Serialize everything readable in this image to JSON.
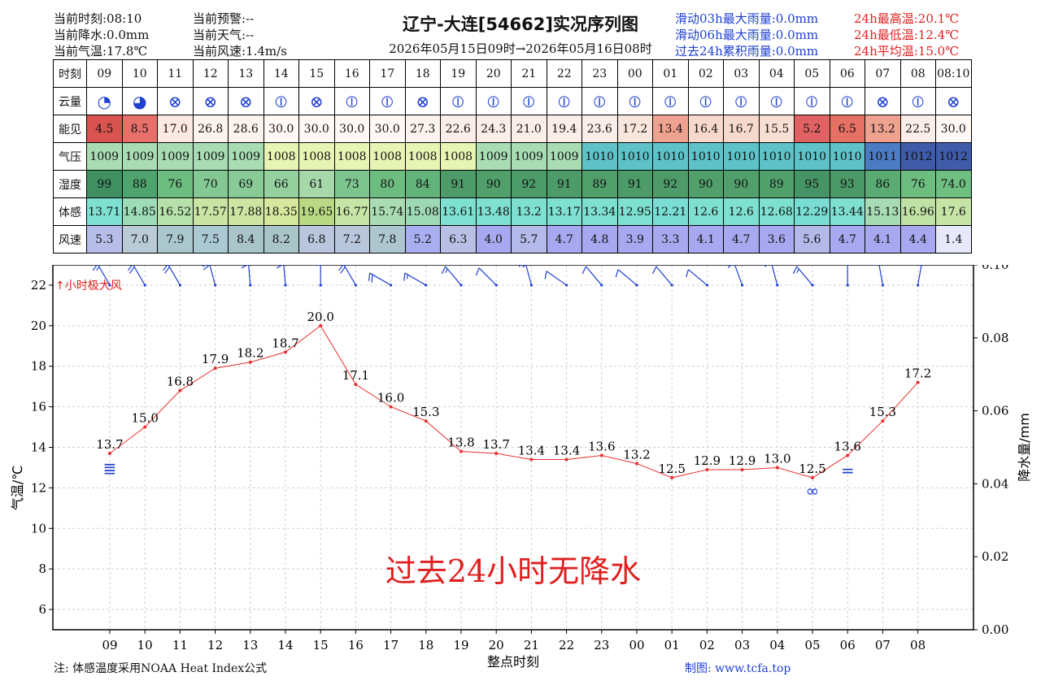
{
  "header": {
    "current_time": "当前时刻:08:10",
    "current_precip": "当前降水:0.0mm",
    "current_temp": "当前气温:17.8℃",
    "current_warning": "当前预警:--",
    "current_weather": "当前天气:--",
    "current_wind": "当前风速:1.4m/s",
    "title": "辽宁-大连[54662]实况序列图",
    "range": "2026年05月15日09时→2026年05月16日08时",
    "rain3h": "滑动03h最大雨量:0.0mm",
    "rain6h": "滑动06h最大雨量:0.0mm",
    "rain24h": "过去24h累积雨量:0.0mm",
    "tmax": "24h最高温:20.1℃",
    "tmin": "24h最低温:12.4℃",
    "tavg": "24h平均温:15.0℃"
  },
  "table": {
    "row_labels": [
      "时刻",
      "云量",
      "能见",
      "气压",
      "湿度",
      "体感",
      "风速"
    ],
    "hours": [
      "09",
      "10",
      "11",
      "12",
      "13",
      "14",
      "15",
      "16",
      "17",
      "18",
      "19",
      "20",
      "21",
      "22",
      "23",
      "00",
      "01",
      "02",
      "03",
      "04",
      "05",
      "06",
      "07",
      "08",
      "08:10"
    ],
    "cloud": [
      "◔",
      "◕",
      "⊗",
      "⊗",
      "⊗",
      "⦶",
      "⊗",
      "⦶",
      "⦶",
      "⊗",
      "⦶",
      "⦶",
      "⦶",
      "⦶",
      "⦶",
      "⦶",
      "⦶",
      "⦶",
      "⦶",
      "⦶",
      "⦶",
      "⦶",
      "⊗",
      "⦶",
      "⊗"
    ],
    "visibility": [
      "4.5",
      "8.5",
      "17.0",
      "26.8",
      "28.6",
      "30.0",
      "30.0",
      "30.0",
      "30.0",
      "27.3",
      "22.6",
      "24.3",
      "21.0",
      "19.4",
      "23.6",
      "17.2",
      "13.4",
      "16.4",
      "16.7",
      "15.5",
      "5.2",
      "6.5",
      "13.2",
      "22.5",
      "30.0"
    ],
    "pressure": [
      "1009",
      "1009",
      "1009",
      "1009",
      "1009",
      "1008",
      "1008",
      "1008",
      "1008",
      "1008",
      "1008",
      "1009",
      "1009",
      "1009",
      "1010",
      "1010",
      "1010",
      "1010",
      "1010",
      "1010",
      "1010",
      "1010",
      "1011",
      "1012",
      "1012"
    ],
    "humidity": [
      "99",
      "88",
      "76",
      "70",
      "69",
      "66",
      "61",
      "73",
      "80",
      "84",
      "91",
      "90",
      "92",
      "91",
      "89",
      "91",
      "92",
      "90",
      "90",
      "89",
      "95",
      "93",
      "86",
      "76",
      "74.0"
    ],
    "feels_like": [
      "13.71",
      "14.85",
      "16.52",
      "17.57",
      "17.88",
      "18.35",
      "19.65",
      "16.77",
      "15.74",
      "15.08",
      "13.61",
      "13.48",
      "13.2",
      "13.17",
      "13.34",
      "12.95",
      "12.21",
      "12.6",
      "12.6",
      "12.68",
      "12.29",
      "13.44",
      "15.13",
      "16.96",
      "17.6"
    ],
    "wind_speed": [
      "5.3",
      "7.0",
      "7.9",
      "7.5",
      "8.4",
      "8.2",
      "6.8",
      "7.2",
      "7.8",
      "5.2",
      "6.3",
      "4.0",
      "5.7",
      "4.7",
      "4.8",
      "3.9",
      "3.3",
      "4.1",
      "4.7",
      "3.6",
      "5.6",
      "4.7",
      "4.1",
      "4.4",
      "1.4"
    ],
    "colors": {
      "visibility": [
        "#d9534f",
        "#e8706a",
        "#fde9e2",
        "#fdf3ee",
        "#fdf3ee",
        "#fff8f5",
        "#fff8f5",
        "#fff8f5",
        "#fff8f5",
        "#fdf3ee",
        "#fbeee8",
        "#fbeee8",
        "#fbeee8",
        "#fbeee8",
        "#fbeee8",
        "#f9e6dd",
        "#f0a290",
        "#f7d8cc",
        "#f7d8cc",
        "#f8dfd4",
        "#e06262",
        "#e57063",
        "#f0a290",
        "#fbeee8",
        "#fff8f5"
      ],
      "pressure": [
        "#a8dcb3",
        "#a8dcb3",
        "#a8dcb3",
        "#a8dcb3",
        "#a8dcb3",
        "#e7f4b4",
        "#e7f4b4",
        "#e7f4b4",
        "#e7f4b4",
        "#e7f4b4",
        "#e7f4b4",
        "#a8dcb3",
        "#a8dcb3",
        "#a8dcb3",
        "#5dc3c9",
        "#5dc3c9",
        "#5dc3c9",
        "#5dc3c9",
        "#5dc3c9",
        "#5dc3c9",
        "#5dc3c9",
        "#5dc3c9",
        "#4a7bc3",
        "#3f5ba9",
        "#3f5ba9"
      ],
      "humidity": [
        "#3f8f61",
        "#4fa36e",
        "#6cbd7f",
        "#84c994",
        "#88cb97",
        "#94d19f",
        "#a6d8aa",
        "#7ec48f",
        "#6cbd7f",
        "#62b379",
        "#4d9b69",
        "#51a06c",
        "#4d9b69",
        "#4d9b69",
        "#51a06c",
        "#4d9b69",
        "#4d9b69",
        "#51a06c",
        "#51a06c",
        "#51a06c",
        "#469465",
        "#4b9868",
        "#5aab74",
        "#6cbd7f",
        "#6ebf81"
      ],
      "feels_like": [
        "#7ee0d1",
        "#9edcb8",
        "#b7e1ab",
        "#c9e4a3",
        "#cde5a1",
        "#d6e79e",
        "#b9d985",
        "#c6e4a6",
        "#a9dcb3",
        "#9ed9b6",
        "#7ee0d1",
        "#7ee0d1",
        "#7ee0d1",
        "#7ee0d1",
        "#7ee0d1",
        "#7ee0d1",
        "#79ddd4",
        "#7ee0d1",
        "#7ee0d1",
        "#7ee0d1",
        "#79ddd4",
        "#7ee0d1",
        "#a6dbb4",
        "#c1e2a5",
        "#c6e4a6"
      ],
      "wind_speed": [
        "#b6bde8",
        "#b9cbd6",
        "#a9c7cd",
        "#aac9d3",
        "#a9c5c9",
        "#a9c5c9",
        "#b9c6dd",
        "#b8c6db",
        "#adc6cf",
        "#a9aef0",
        "#b9c0e6",
        "#a8a8f0",
        "#b3b9e8",
        "#a8a8f0",
        "#a8a8f0",
        "#a8a8f0",
        "#a8a8f0",
        "#a8a8f0",
        "#a8a8f0",
        "#a8a8f0",
        "#b3b9e8",
        "#a8a8f0",
        "#a8a8f0",
        "#a8a8f0",
        "#e8e8fb"
      ]
    }
  },
  "chart_data": {
    "type": "line",
    "title": "",
    "x_ticks": [
      "09",
      "10",
      "11",
      "12",
      "13",
      "14",
      "15",
      "16",
      "17",
      "18",
      "19",
      "20",
      "21",
      "22",
      "23",
      "00",
      "01",
      "02",
      "03",
      "04",
      "05",
      "06",
      "07",
      "08"
    ],
    "xlabel": "整点时刻",
    "ylabel": "气温/℃",
    "ylim": [
      5,
      23
    ],
    "y_ticks": [
      6,
      8,
      10,
      12,
      14,
      16,
      18,
      20,
      22
    ],
    "y2label": "降水量/mm",
    "y2lim": [
      0,
      0.1
    ],
    "y2_ticks": [
      "0.00",
      "0.02",
      "0.04",
      "0.06",
      "0.08",
      "0.10"
    ],
    "grid": true,
    "series": [
      {
        "values": [
          13.7,
          15.0,
          16.8,
          17.9,
          18.2,
          18.7,
          20.0,
          17.1,
          16.0,
          15.3,
          13.8,
          13.7,
          13.4,
          13.4,
          13.6,
          13.2,
          12.5,
          12.9,
          12.9,
          13.0,
          12.5,
          13.6,
          15.3,
          17.2
        ],
        "labels": [
          "13.7",
          "15.0",
          "16.8",
          "17.9",
          "18.2",
          "18.7",
          "20.0",
          "17.1",
          "16.0",
          "15.3",
          "13.8",
          "13.7",
          "13.4",
          "13.4",
          "13.6",
          "13.2",
          "12.5",
          "12.9",
          "12.9",
          "13.0",
          "12.5",
          "13.6",
          "15.3",
          "17.2"
        ],
        "color": "#e83030"
      }
    ],
    "gust_label": "小时极大风",
    "no_precip_text": "过去24小时无降水",
    "wind_barbs": [
      {
        "dir": 330,
        "speed": 5.3
      },
      {
        "dir": 330,
        "speed": 7.0
      },
      {
        "dir": 330,
        "speed": 7.9
      },
      {
        "dir": 345,
        "speed": 7.5
      },
      {
        "dir": 355,
        "speed": 8.4
      },
      {
        "dir": 355,
        "speed": 8.2
      },
      {
        "dir": 0,
        "speed": 6.8
      },
      {
        "dir": 330,
        "speed": 7.2
      },
      {
        "dir": 300,
        "speed": 7.8
      },
      {
        "dir": 300,
        "speed": 5.2
      },
      {
        "dir": 320,
        "speed": 6.3
      },
      {
        "dir": 315,
        "speed": 4.0
      },
      {
        "dir": 345,
        "speed": 5.7
      },
      {
        "dir": 305,
        "speed": 4.7
      },
      {
        "dir": 320,
        "speed": 4.8
      },
      {
        "dir": 310,
        "speed": 3.9
      },
      {
        "dir": 320,
        "speed": 3.3
      },
      {
        "dir": 310,
        "speed": 4.1
      },
      {
        "dir": 340,
        "speed": 4.7
      },
      {
        "dir": 345,
        "speed": 3.6
      },
      {
        "dir": 320,
        "speed": 5.6
      },
      {
        "dir": 0,
        "speed": 4.7
      },
      {
        "dir": 350,
        "speed": 4.1
      },
      {
        "dir": 10,
        "speed": 4.4
      }
    ],
    "weather_symbols": [
      {
        "index": 0,
        "symbol": "≣",
        "value": 13.4
      },
      {
        "index": 20,
        "symbol": "∞",
        "value": 12.3
      },
      {
        "index": 21,
        "symbol": "=",
        "value": 13.3
      }
    ]
  },
  "footer": {
    "note": "注: 体感温度采用NOAA Heat Index公式",
    "maker": "制图: www.tcfa.top"
  }
}
